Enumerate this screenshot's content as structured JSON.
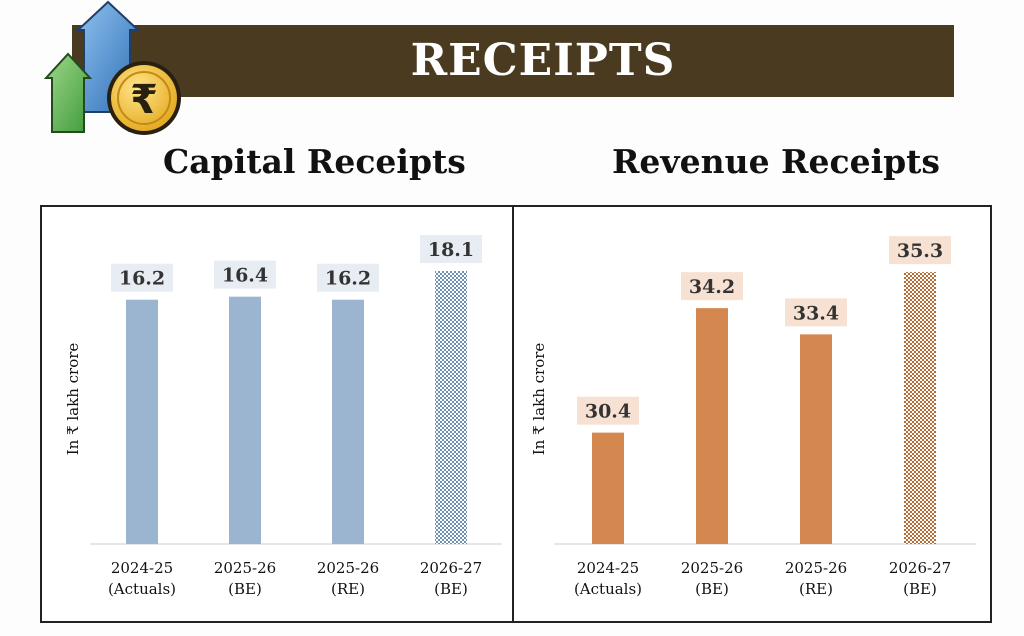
{
  "header": {
    "title": "RECEIPTS",
    "logo_icon": "rupee-coin-arrows-icon"
  },
  "colors": {
    "banner": "#4a3a1f",
    "capital_bar": "#9bb5d0",
    "capital_label_bg": "#e8edf4",
    "revenue_bar": "#d4874f",
    "revenue_label_bg": "#f7e1d3"
  },
  "chart_data": [
    {
      "type": "bar",
      "title": "Capital Receipts",
      "ylabel": "In ₹ lakh crore",
      "xlabel": "",
      "ylim": [
        0,
        18.5
      ],
      "categories": [
        [
          "2024-25",
          "(Actuals)"
        ],
        [
          "2025-26",
          "(BE)"
        ],
        [
          "2025-26",
          "(RE)"
        ],
        [
          "2026-27",
          "(BE)"
        ]
      ],
      "values": [
        16.2,
        16.4,
        16.2,
        18.1
      ],
      "value_labels": [
        "16.2",
        "16.4",
        "16.2",
        "18.1"
      ],
      "patterned": [
        false,
        false,
        false,
        true
      ],
      "grid": false,
      "legend": "none"
    },
    {
      "type": "bar",
      "title": "Revenue Receipts",
      "ylabel": "In ₹ lakh crore",
      "xlabel": "",
      "ylim": [
        27.0,
        35.7
      ],
      "categories": [
        [
          "2024-25",
          "(Actuals)"
        ],
        [
          "2025-26",
          "(BE)"
        ],
        [
          "2025-26",
          "(RE)"
        ],
        [
          "2026-27",
          "(BE)"
        ]
      ],
      "values": [
        30.4,
        34.2,
        33.4,
        35.3
      ],
      "value_labels": [
        "30.4",
        "34.2",
        "33.4",
        "35.3"
      ],
      "patterned": [
        false,
        false,
        false,
        true
      ],
      "grid": false,
      "legend": "none"
    }
  ]
}
